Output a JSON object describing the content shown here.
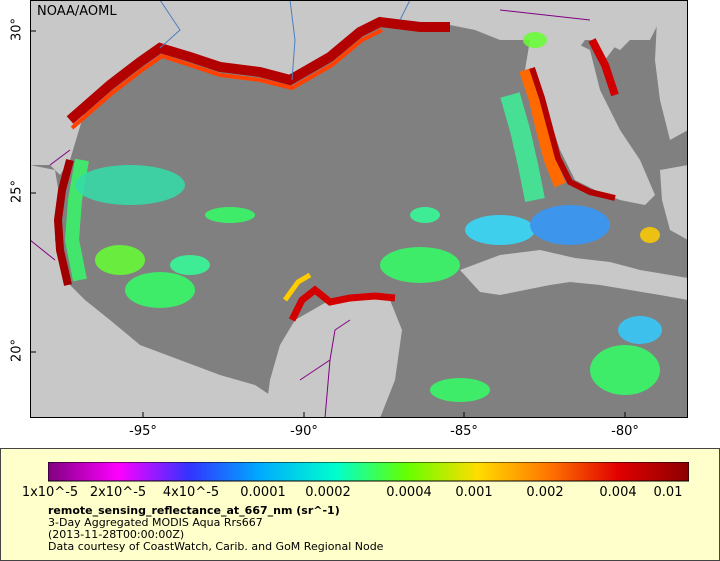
{
  "map": {
    "credit": "NOAA/AOML",
    "lat_labels": [
      "30°",
      "25°",
      "20°"
    ],
    "lon_labels": [
      "-95°",
      "-90°",
      "-85°",
      "-80°"
    ],
    "colors": {
      "water": "#808080",
      "land": "#c8c8c8",
      "legend_background": "#ffffcc"
    }
  },
  "legend": {
    "tick_labels": [
      "1x10^-5",
      "2x10^-5",
      "4x10^-5",
      "0.0001",
      "0.0002",
      "0.0004",
      "0.001",
      "0.002",
      "0.004",
      "0.01"
    ],
    "variable": "remote_sensing_reflectance_at_667_nm (sr^-1)",
    "product": "3-Day Aggregated MODIS Aqua Rrs667",
    "time": "(2013-11-28T00:00:00Z)",
    "source": "Data courtesy of CoastWatch, Carib. and GoM Regional Node"
  }
}
